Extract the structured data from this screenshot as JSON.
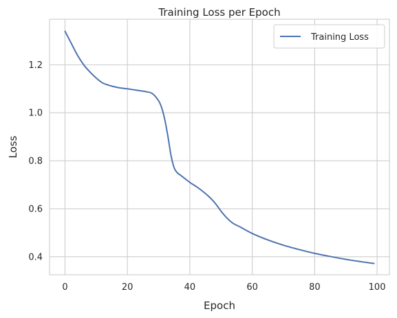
{
  "chart_data": {
    "type": "line",
    "title": "Training Loss per Epoch",
    "xlabel": "Epoch",
    "ylabel": "Loss",
    "xlim": [
      -4.95,
      103.95
    ],
    "ylim": [
      0.325,
      1.39
    ],
    "xticks": [
      0,
      20,
      40,
      60,
      80,
      100
    ],
    "yticks": [
      0.4,
      0.6,
      0.8,
      1.0,
      1.2
    ],
    "ytick_labels": [
      "0.4",
      "0.6",
      "0.8",
      "1.0",
      "1.2"
    ],
    "grid": true,
    "legend": {
      "position": "top-right"
    },
    "series": [
      {
        "name": "Training Loss",
        "color": "#4c72b0",
        "x": [
          0,
          2,
          4,
          6,
          8,
          10,
          12,
          14,
          16,
          18,
          20,
          22,
          24,
          26,
          28,
          30,
          31,
          32,
          33,
          34,
          35,
          36,
          37,
          38,
          40,
          42,
          44,
          46,
          48,
          50,
          52,
          54,
          56,
          60,
          65,
          70,
          75,
          80,
          85,
          90,
          95,
          99
        ],
        "values": [
          1.34,
          1.29,
          1.24,
          1.2,
          1.17,
          1.145,
          1.125,
          1.115,
          1.108,
          1.103,
          1.1,
          1.096,
          1.092,
          1.088,
          1.08,
          1.05,
          1.02,
          0.97,
          0.9,
          0.82,
          0.77,
          0.75,
          0.74,
          0.73,
          0.71,
          0.693,
          0.674,
          0.652,
          0.625,
          0.59,
          0.56,
          0.538,
          0.525,
          0.497,
          0.47,
          0.448,
          0.43,
          0.414,
          0.401,
          0.389,
          0.379,
          0.372
        ]
      }
    ]
  }
}
